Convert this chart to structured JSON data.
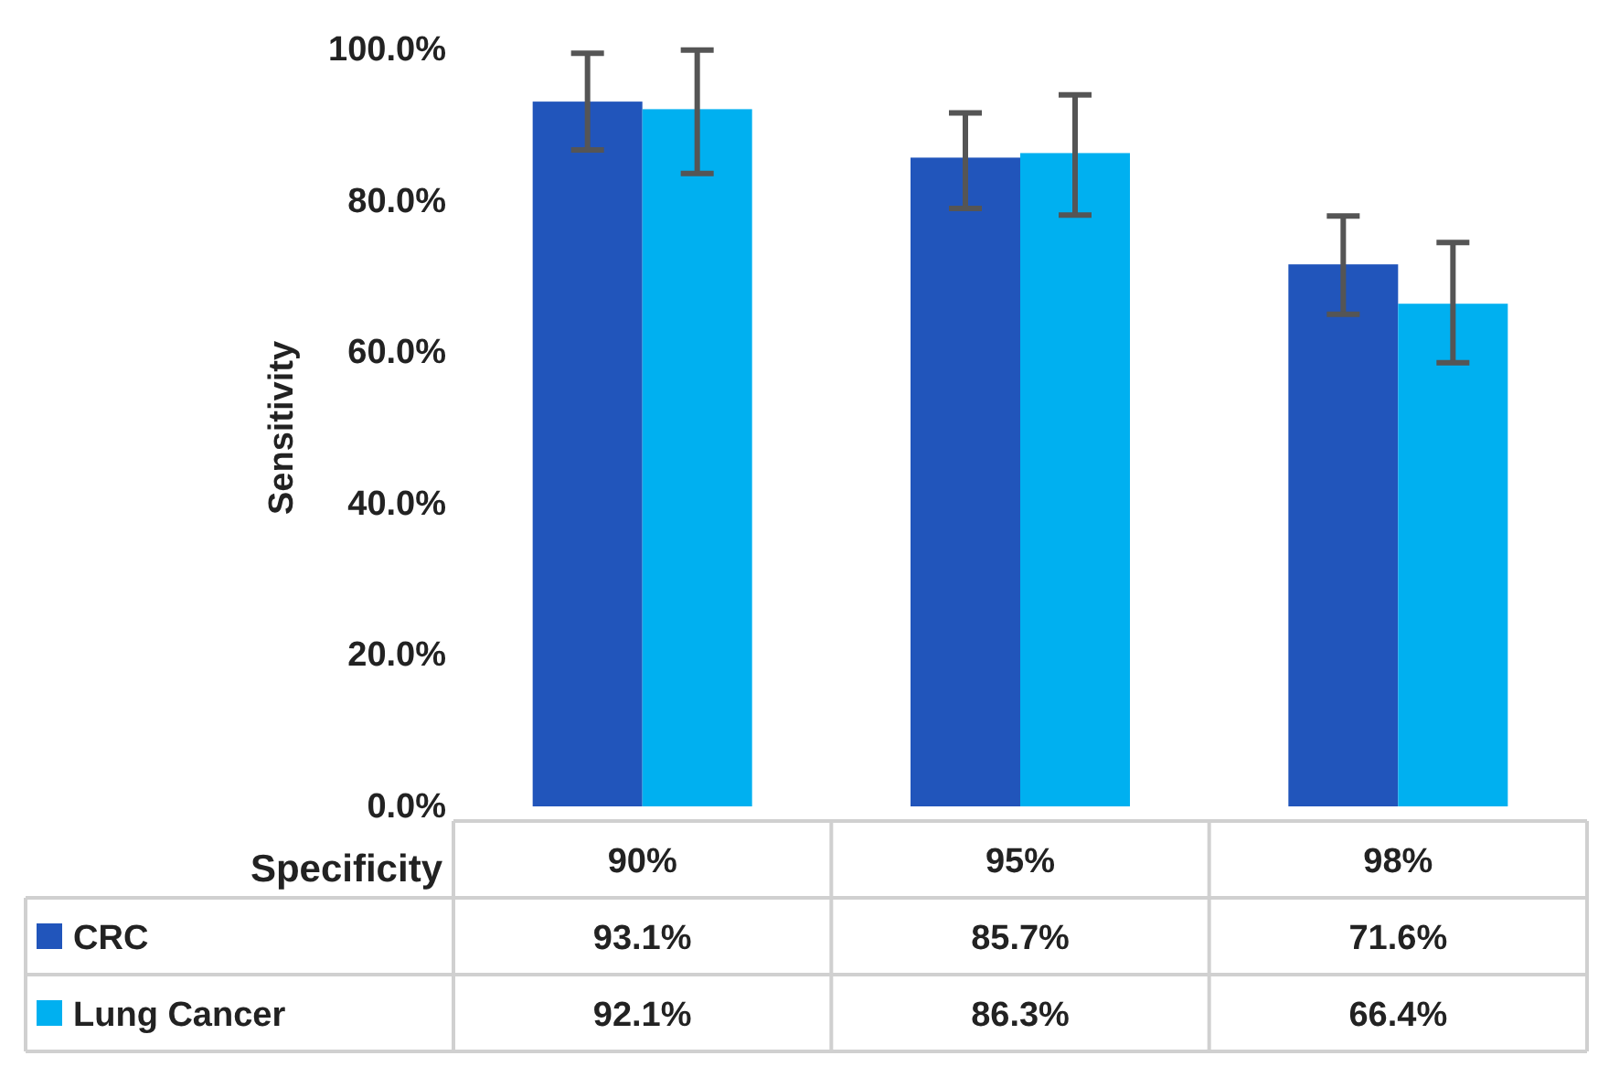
{
  "chart_data": {
    "type": "bar",
    "ylabel": "Sensitivity",
    "xlabel": "Specificity",
    "categories": [
      "90%",
      "95%",
      "98%"
    ],
    "series": [
      {
        "name": "CRC",
        "color": "#2155bb",
        "values": [
          93.1,
          85.7,
          71.6
        ],
        "errors": [
          [
            86.7,
            99.5
          ],
          [
            79.0,
            91.6
          ],
          [
            65.0,
            78.0
          ]
        ],
        "value_labels": [
          "93.1%",
          "85.7%",
          "71.6%"
        ]
      },
      {
        "name": "Lung Cancer",
        "color": "#00b0f0",
        "values": [
          92.1,
          86.3,
          66.4
        ],
        "errors": [
          [
            83.6,
            99.9
          ],
          [
            78.1,
            94.0
          ],
          [
            58.6,
            74.5
          ]
        ],
        "value_labels": [
          "92.1%",
          "86.3%",
          "66.4%"
        ]
      }
    ],
    "ylim": [
      0,
      100
    ],
    "yticks": [
      {
        "value": 0,
        "label": "0.0%"
      },
      {
        "value": 20,
        "label": "20.0%"
      },
      {
        "value": 40,
        "label": "40.0%"
      },
      {
        "value": 60,
        "label": "60.0%"
      },
      {
        "value": 80,
        "label": "80.0%"
      },
      {
        "value": 100,
        "label": "100.0%"
      }
    ],
    "grid": false,
    "legend": "bottom"
  }
}
